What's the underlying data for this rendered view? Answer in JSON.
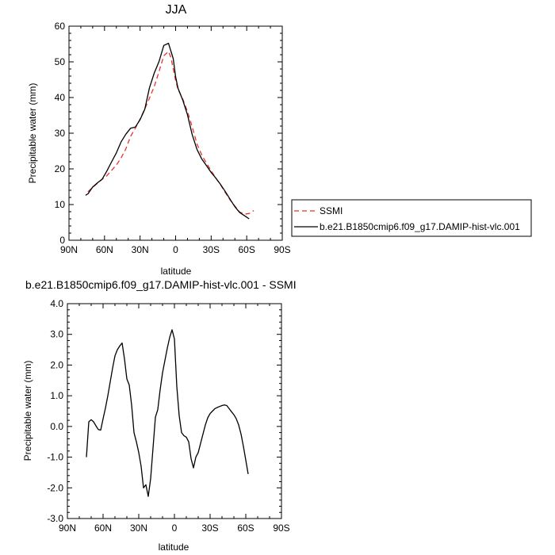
{
  "chart_data": [
    {
      "type": "line",
      "title": "JJA",
      "xlabel": "latitude",
      "ylabel": "Precipitable water (mm)",
      "xlim": [
        90,
        -90
      ],
      "ylim": [
        0,
        60
      ],
      "x_ticks": [
        90,
        60,
        30,
        0,
        -30,
        -60,
        -90
      ],
      "x_tick_labels": [
        "90N",
        "60N",
        "30N",
        "0",
        "30S",
        "60S",
        "90S"
      ],
      "y_ticks": [
        0,
        10,
        20,
        30,
        40,
        50,
        60
      ],
      "y_tick_labels": [
        "0",
        "10",
        "20",
        "30",
        "40",
        "50",
        "60"
      ],
      "legend": {
        "placement": "right",
        "entries": [
          "SSMI",
          "b.e21.B1850cmip6.f09_g17.DAMIP-hist-vlc.001"
        ]
      },
      "series": [
        {
          "name": "SSMI",
          "color": "#e8322e",
          "dash": true,
          "x": [
            74,
            70,
            66,
            62,
            58,
            54,
            50,
            46,
            42,
            38,
            34,
            30,
            26,
            22,
            18,
            14,
            10,
            6,
            4,
            2,
            0,
            -2,
            -6,
            -10,
            -14,
            -18,
            -22,
            -26,
            -30,
            -34,
            -38,
            -42,
            -46,
            -50,
            -54,
            -58,
            -62,
            -66
          ],
          "y": [
            13.6,
            14.8,
            16.0,
            17.1,
            18.1,
            19.6,
            21.1,
            23.1,
            25.6,
            29.1,
            31.4,
            34.0,
            36.8,
            39.9,
            43.1,
            47.3,
            51.7,
            52.9,
            51.3,
            48.0,
            44.8,
            42.3,
            39.6,
            36.1,
            31.8,
            27.0,
            23.9,
            21.6,
            19.5,
            17.4,
            15.5,
            13.3,
            11.3,
            9.6,
            7.9,
            7.3,
            7.5,
            8.3
          ]
        },
        {
          "name": "b.e21.B1850cmip6.f09_g17.DAMIP-hist-vlc.001",
          "color": "#000000",
          "dash": false,
          "x": [
            76,
            74,
            70,
            66,
            62,
            58,
            54,
            50,
            46,
            42,
            38,
            34,
            30,
            26,
            22,
            18,
            14,
            10,
            6,
            2,
            0,
            -2,
            -6,
            -10,
            -14,
            -18,
            -22,
            -26,
            -30,
            -34,
            -38,
            -42,
            -46,
            -50,
            -54,
            -58,
            -62
          ],
          "y": [
            12.6,
            13.0,
            14.9,
            16.1,
            17.1,
            19.4,
            22.0,
            24.5,
            27.6,
            29.7,
            31.4,
            31.7,
            33.8,
            36.7,
            42.8,
            46.9,
            50.1,
            54.6,
            55.2,
            50.9,
            45.8,
            42.6,
            39.3,
            35.2,
            29.6,
            25.5,
            22.8,
            20.9,
            19.0,
            17.4,
            15.6,
            13.6,
            11.5,
            9.4,
            7.8,
            6.9,
            6.0
          ]
        }
      ]
    },
    {
      "type": "line",
      "title": "b.e21.B1850cmip6.f09_g17.DAMIP-hist-vlc.001 - SSMI",
      "xlabel": "latitude",
      "ylabel": "Precipitable water (mm)",
      "xlim": [
        90,
        -90
      ],
      "ylim": [
        -3.0,
        4.0
      ],
      "x_ticks": [
        90,
        60,
        30,
        0,
        -30,
        -60,
        -90
      ],
      "x_tick_labels": [
        "90N",
        "60N",
        "30N",
        "0",
        "30S",
        "60S",
        "90S"
      ],
      "y_ticks": [
        -3,
        -2,
        -1,
        0,
        1,
        2,
        3,
        4
      ],
      "y_tick_labels": [
        "-3.0",
        "-2.0",
        "-1.0",
        "0.0",
        "1.0",
        "2.0",
        "3.0",
        "4.0"
      ],
      "series": [
        {
          "color": "#000000",
          "dash": false,
          "x": [
            74,
            72,
            70,
            68,
            66,
            64,
            62,
            60,
            58,
            56,
            54,
            52,
            50,
            48,
            46,
            44,
            42,
            40,
            38,
            36,
            34,
            32,
            30,
            28,
            26,
            24,
            22,
            20,
            18,
            16,
            14,
            12,
            10,
            8,
            6,
            4,
            2,
            0,
            -2,
            -4,
            -6,
            -8,
            -10,
            -12,
            -14,
            -16,
            -18,
            -20,
            -22,
            -24,
            -26,
            -28,
            -30,
            -32,
            -34,
            -36,
            -38,
            -40,
            -42,
            -44,
            -46,
            -48,
            -50,
            -52,
            -54,
            -56,
            -58,
            -60,
            -62
          ],
          "y": [
            -1.0,
            0.15,
            0.22,
            0.15,
            0.02,
            -0.1,
            -0.12,
            0.25,
            0.6,
            1.0,
            1.45,
            1.9,
            2.3,
            2.5,
            2.62,
            2.72,
            2.2,
            1.55,
            1.35,
            0.7,
            -0.2,
            -0.5,
            -0.85,
            -1.3,
            -2.0,
            -1.9,
            -2.28,
            -1.7,
            -0.7,
            0.3,
            0.55,
            1.2,
            1.75,
            2.15,
            2.55,
            2.9,
            3.15,
            2.85,
            1.3,
            0.35,
            -0.2,
            -0.3,
            -0.35,
            -0.5,
            -1.05,
            -1.35,
            -1.0,
            -0.85,
            -0.55,
            -0.25,
            0.05,
            0.28,
            0.42,
            0.5,
            0.58,
            0.62,
            0.65,
            0.68,
            0.7,
            0.68,
            0.58,
            0.48,
            0.38,
            0.25,
            0.05,
            -0.25,
            -0.65,
            -1.1,
            -1.55
          ]
        }
      ]
    }
  ]
}
